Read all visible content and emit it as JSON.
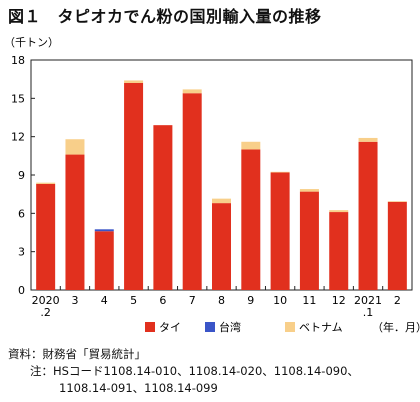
{
  "figure": {
    "title": "図１　タピオカでん粉の国別輸入量の推移",
    "source": "資料：財務省「貿易統計」",
    "notes": [
      "注：HSコード1108.14-010、1108.14-020、1108.14-090、",
      "1108.14-091、1108.14-099"
    ]
  },
  "chart_data": {
    "type": "bar",
    "stacked": true,
    "unit_label": "（千トン）",
    "x_unit_label": "（年．月）",
    "categories": [
      [
        "2020",
        ".2"
      ],
      [
        "3"
      ],
      [
        "4"
      ],
      [
        "5"
      ],
      [
        "6"
      ],
      [
        "7"
      ],
      [
        "8"
      ],
      [
        "9"
      ],
      [
        "10"
      ],
      [
        "11"
      ],
      [
        "12"
      ],
      [
        "2021",
        ".1"
      ],
      [
        "2"
      ]
    ],
    "series": [
      {
        "name": "タイ",
        "color": "#e1301e",
        "values": [
          8.3,
          10.6,
          4.6,
          16.2,
          12.9,
          15.4,
          6.8,
          11.0,
          9.2,
          7.7,
          6.1,
          11.6,
          6.9
        ]
      },
      {
        "name": "台湾",
        "color": "#3a55c8",
        "values": [
          0,
          0,
          0.15,
          0,
          0,
          0,
          0,
          0,
          0,
          0,
          0,
          0,
          0
        ]
      },
      {
        "name": "ベトナム",
        "color": "#f8cf8a",
        "values": [
          0.1,
          1.2,
          0,
          0.2,
          0,
          0.3,
          0.35,
          0.6,
          0.05,
          0.2,
          0.15,
          0.3,
          0.05
        ]
      }
    ],
    "ylim": [
      0,
      18
    ],
    "yticks": [
      0,
      3,
      6,
      9,
      12,
      15,
      18
    ],
    "grid": false,
    "legend": "bottom"
  }
}
